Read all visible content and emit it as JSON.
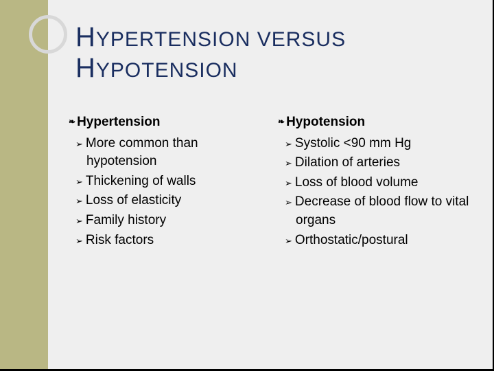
{
  "title": {
    "word1_initial": "H",
    "word1_rest": "YPERTENSION",
    "middle": " VERSUS ",
    "word2_initial": "H",
    "word2_rest": "YPOTENSION"
  },
  "colors": {
    "sidebar": "#b9b784",
    "background": "#efefef",
    "title": "#1a2e60",
    "circle_border": "#d8d8d8"
  },
  "left": {
    "heading": "Hypertension",
    "items": [
      "More common than hypotension",
      "Thickening of walls",
      "Loss of elasticity",
      "Family history",
      "Risk factors"
    ]
  },
  "right": {
    "heading": "Hypotension",
    "items": [
      "Systolic <90 mm Hg",
      "Dilation of arteries",
      "Loss of blood volume",
      "Decrease of blood flow to vital organs",
      "Orthostatic/postural"
    ]
  }
}
